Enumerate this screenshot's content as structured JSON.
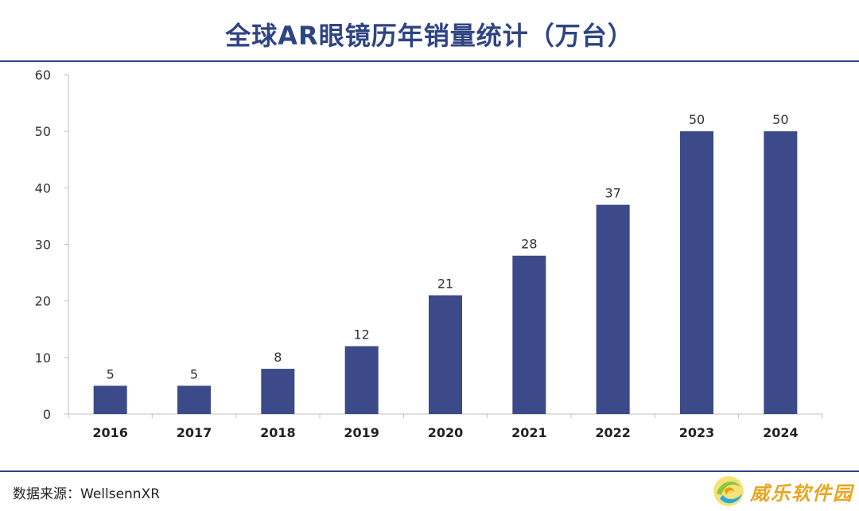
{
  "title": "全球AR眼镜历年销量统计（万台）",
  "source": "数据来源：WellsennXR",
  "watermark": {
    "text": "威乐软件园",
    "icon": "swirl-logo-icon"
  },
  "colors": {
    "bar": "#3c4a8a",
    "rule": "#2f4483",
    "title": "#2f4483",
    "axis": "#bfbfbf"
  },
  "chart_data": {
    "type": "bar",
    "title": "全球AR眼镜历年销量统计（万台）",
    "xlabel": "",
    "ylabel": "",
    "categories": [
      "2016",
      "2017",
      "2018",
      "2019",
      "2020",
      "2021",
      "2022",
      "2023",
      "2024"
    ],
    "values": [
      5,
      5,
      8,
      12,
      21,
      28,
      37,
      50,
      50
    ],
    "ylim": [
      0,
      60
    ],
    "yticks": [
      0,
      10,
      20,
      30,
      40,
      50,
      60
    ],
    "data_labels": true,
    "grid": false,
    "legend": "none"
  }
}
